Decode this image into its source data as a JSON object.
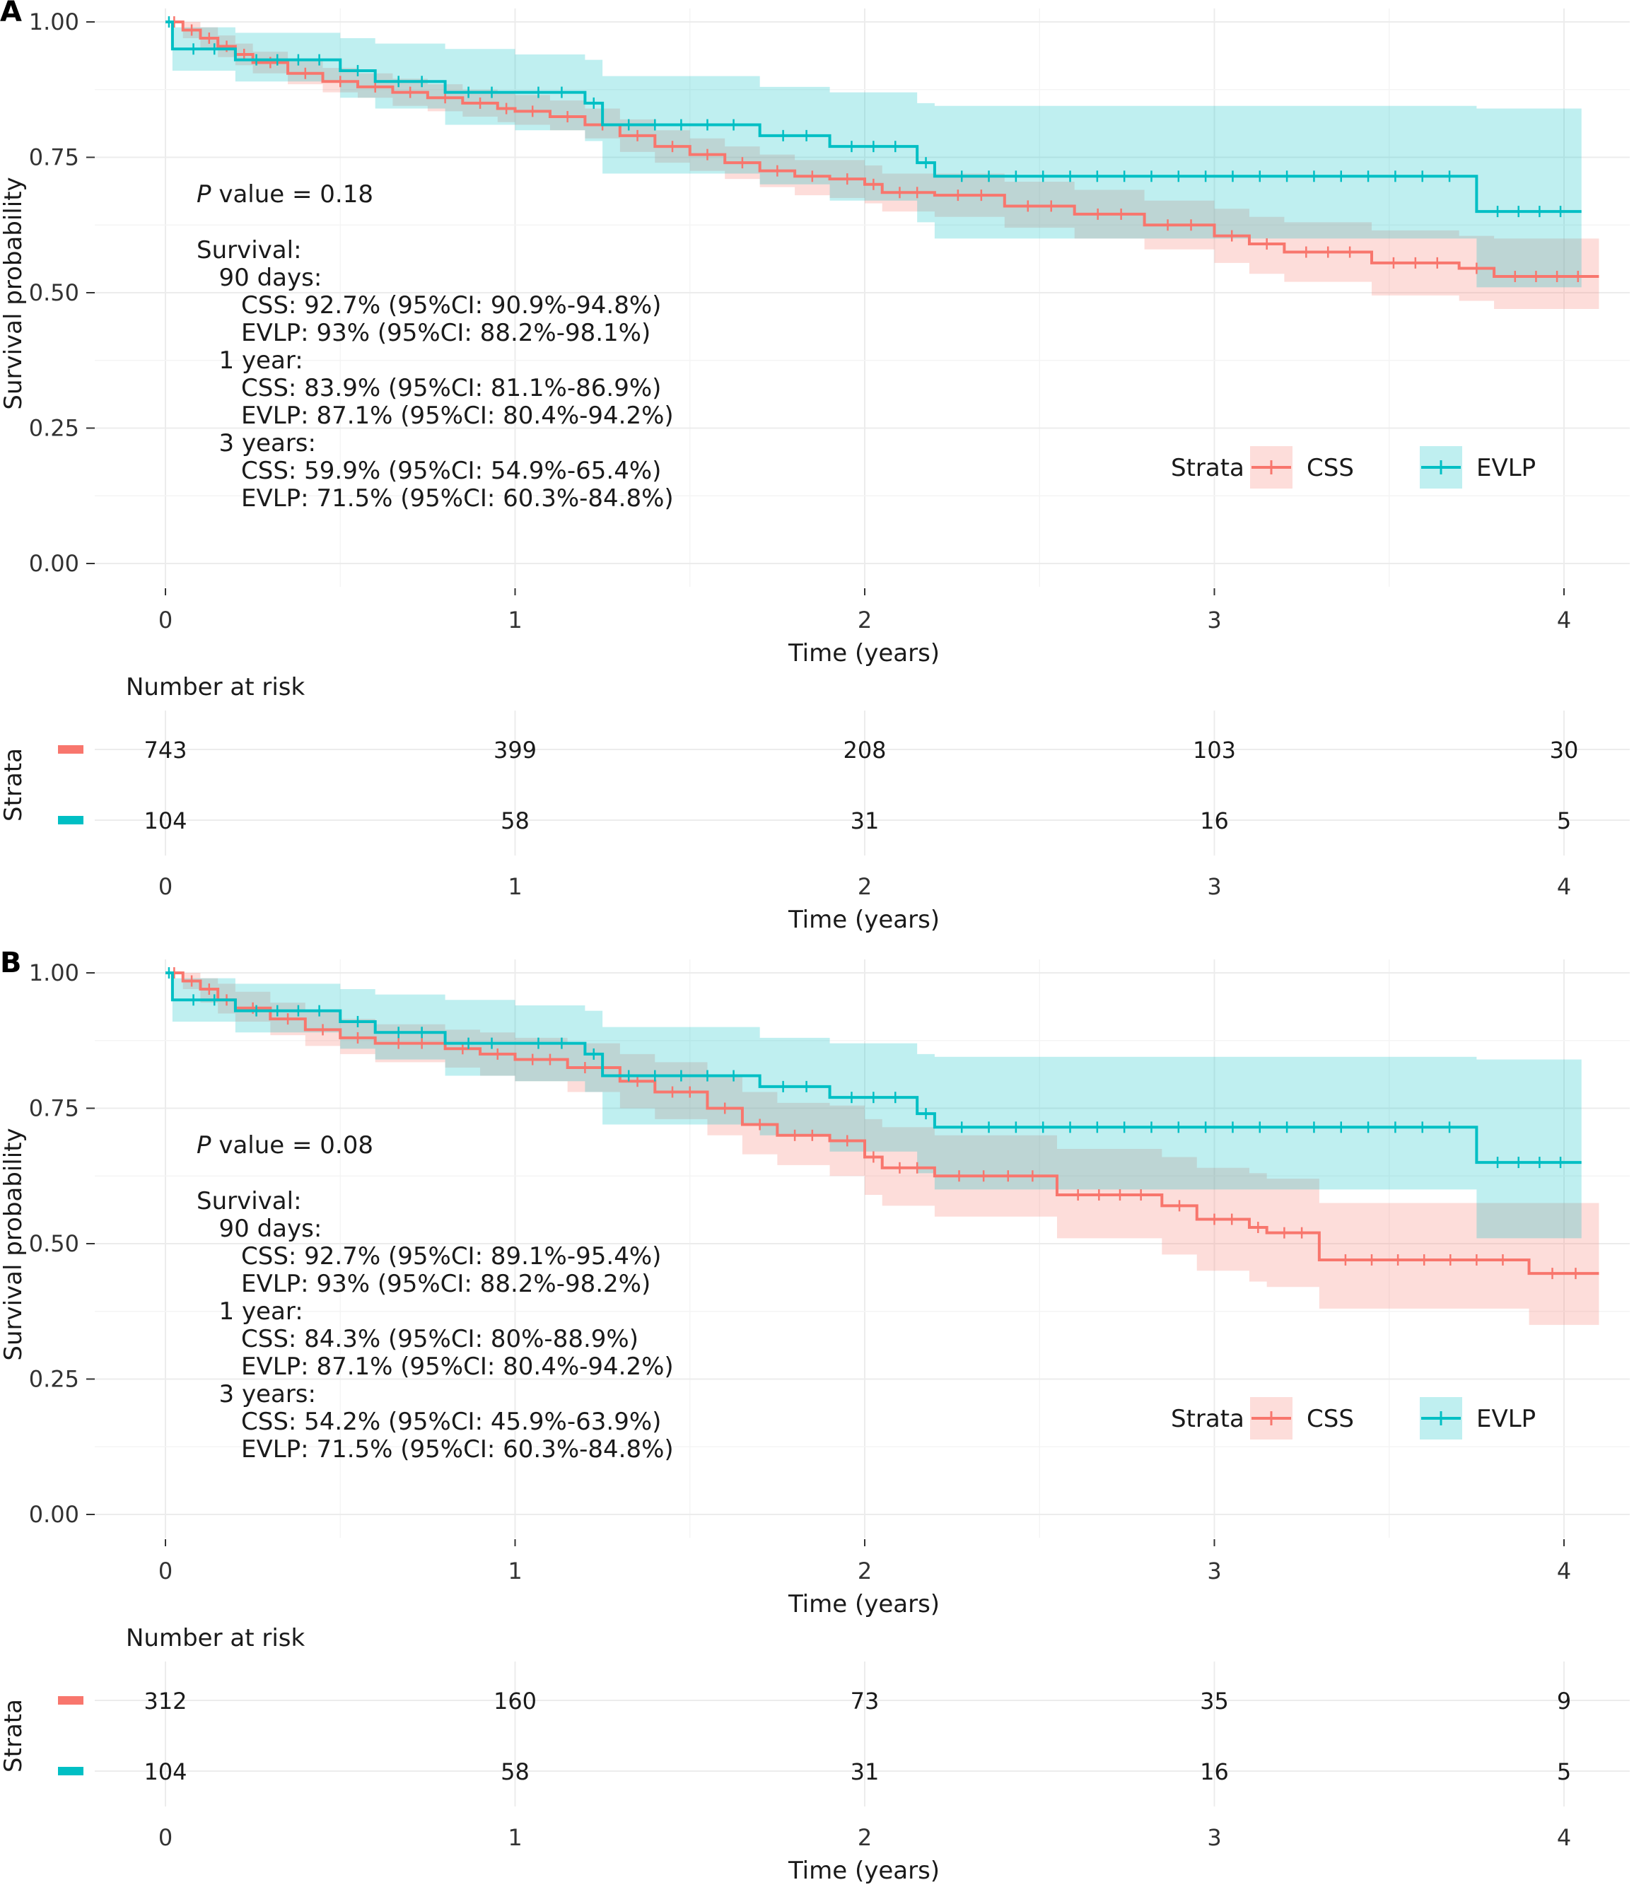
{
  "colors": {
    "css": "#f8766d",
    "evlp": "#00bfc4",
    "grid": "#ececec"
  },
  "chart_data": [
    {
      "type": "line",
      "panel_label": "A",
      "xlabel": "Time (years)",
      "ylabel": "Survival probability",
      "xlim": [
        0,
        4.15
      ],
      "ylim": [
        0,
        1
      ],
      "x_ticks": [
        "0",
        "1",
        "2",
        "3",
        "4"
      ],
      "y_ticks": [
        "0.00",
        "0.25",
        "0.50",
        "0.75",
        "1.00"
      ],
      "grid": true,
      "legend": {
        "title": "Strata",
        "position": "bottom-right",
        "items": [
          "CSS",
          "EVLP"
        ]
      },
      "annotation": {
        "p_label": "P",
        "p_value": " value = 0.18",
        "lines": [
          "Survival:",
          "   90 days:",
          "      CSS: 92.7% (95%CI: 90.9%-94.8%)",
          "      EVLP: 93% (95%CI: 88.2%-98.1%)",
          "   1 year:",
          "      CSS: 83.9% (95%CI: 81.1%-86.9%)",
          "      EVLP: 87.1% (95%CI: 80.4%-94.2%)",
          "   3 years:",
          "      CSS: 59.9% (95%CI: 54.9%-65.4%)",
          "      EVLP: 71.5% (95%CI: 60.3%-84.8%)"
        ]
      },
      "series": [
        {
          "name": "CSS",
          "x": [
            0,
            0.05,
            0.1,
            0.15,
            0.2,
            0.25,
            0.35,
            0.45,
            0.55,
            0.65,
            0.75,
            0.85,
            0.95,
            1.0,
            1.1,
            1.2,
            1.3,
            1.4,
            1.5,
            1.6,
            1.7,
            1.8,
            1.9,
            2.0,
            2.05,
            2.2,
            2.4,
            2.6,
            2.8,
            3.0,
            3.1,
            3.2,
            3.45,
            3.7,
            3.8,
            4.1
          ],
          "y": [
            1.0,
            0.985,
            0.97,
            0.955,
            0.94,
            0.925,
            0.905,
            0.89,
            0.88,
            0.87,
            0.86,
            0.85,
            0.84,
            0.835,
            0.825,
            0.81,
            0.79,
            0.77,
            0.755,
            0.74,
            0.725,
            0.715,
            0.71,
            0.7,
            0.685,
            0.68,
            0.66,
            0.645,
            0.625,
            0.605,
            0.59,
            0.575,
            0.555,
            0.545,
            0.53,
            0.53
          ],
          "lower": [
            1.0,
            0.97,
            0.95,
            0.935,
            0.92,
            0.905,
            0.885,
            0.87,
            0.86,
            0.845,
            0.835,
            0.825,
            0.815,
            0.81,
            0.8,
            0.785,
            0.76,
            0.74,
            0.725,
            0.71,
            0.695,
            0.68,
            0.675,
            0.665,
            0.65,
            0.64,
            0.62,
            0.6,
            0.58,
            0.555,
            0.535,
            0.52,
            0.495,
            0.485,
            0.47,
            0.47
          ],
          "upper": [
            1.0,
            1.0,
            0.99,
            0.975,
            0.96,
            0.945,
            0.93,
            0.915,
            0.905,
            0.895,
            0.885,
            0.875,
            0.87,
            0.865,
            0.855,
            0.84,
            0.82,
            0.8,
            0.785,
            0.77,
            0.755,
            0.745,
            0.745,
            0.735,
            0.72,
            0.72,
            0.705,
            0.69,
            0.67,
            0.655,
            0.64,
            0.63,
            0.615,
            0.605,
            0.6,
            0.6
          ]
        },
        {
          "name": "EVLP",
          "x": [
            0,
            0.02,
            0.2,
            0.5,
            0.6,
            0.8,
            1.0,
            1.2,
            1.25,
            1.7,
            1.9,
            2.15,
            2.2,
            3.75,
            4.05
          ],
          "y": [
            1.0,
            0.95,
            0.93,
            0.91,
            0.89,
            0.87,
            0.87,
            0.85,
            0.81,
            0.79,
            0.77,
            0.74,
            0.715,
            0.65,
            0.65
          ],
          "lower": [
            1.0,
            0.91,
            0.89,
            0.86,
            0.84,
            0.81,
            0.8,
            0.78,
            0.72,
            0.7,
            0.67,
            0.63,
            0.6,
            0.51,
            0.51
          ],
          "upper": [
            1.0,
            0.99,
            0.98,
            0.97,
            0.96,
            0.95,
            0.94,
            0.93,
            0.9,
            0.88,
            0.87,
            0.85,
            0.845,
            0.84,
            0.84
          ]
        }
      ],
      "risk_table": {
        "title": "Number at risk",
        "ylabel": "Strata",
        "xlabel": "Time (years)",
        "x_ticks": [
          "0",
          "1",
          "2",
          "3",
          "4"
        ],
        "rows": [
          {
            "name": "CSS",
            "values": [
              "743",
              "399",
              "208",
              "103",
              "30"
            ]
          },
          {
            "name": "EVLP",
            "values": [
              "104",
              "58",
              "31",
              "16",
              "5"
            ]
          }
        ]
      }
    },
    {
      "type": "line",
      "panel_label": "B",
      "xlabel": "Time (years)",
      "ylabel": "Survival probability",
      "xlim": [
        0,
        4.15
      ],
      "ylim": [
        0,
        1
      ],
      "x_ticks": [
        "0",
        "1",
        "2",
        "3",
        "4"
      ],
      "y_ticks": [
        "0.00",
        "0.25",
        "0.50",
        "0.75",
        "1.00"
      ],
      "grid": true,
      "legend": {
        "title": "Strata",
        "position": "bottom-right",
        "items": [
          "CSS",
          "EVLP"
        ]
      },
      "annotation": {
        "p_label": "P",
        "p_value": " value = 0.08",
        "lines": [
          "Survival:",
          "   90 days:",
          "      CSS: 92.7% (95%CI: 89.1%-95.4%)",
          "      EVLP: 93% (95%CI: 88.2%-98.2%)",
          "   1 year:",
          "      CSS: 84.3% (95%CI: 80%-88.9%)",
          "      EVLP: 87.1% (95%CI: 80.4%-94.2%)",
          "   3 years:",
          "      CSS: 54.2% (95%CI: 45.9%-63.9%)",
          "      EVLP: 71.5% (95%CI: 60.3%-84.8%)"
        ]
      },
      "series": [
        {
          "name": "CSS",
          "x": [
            0,
            0.05,
            0.1,
            0.15,
            0.2,
            0.3,
            0.4,
            0.5,
            0.6,
            0.8,
            0.9,
            1.0,
            1.15,
            1.3,
            1.4,
            1.55,
            1.65,
            1.75,
            1.9,
            2.0,
            2.05,
            2.2,
            2.55,
            2.85,
            2.95,
            3.1,
            3.15,
            3.3,
            3.9,
            4.1
          ],
          "y": [
            1.0,
            0.985,
            0.97,
            0.95,
            0.935,
            0.915,
            0.895,
            0.88,
            0.87,
            0.86,
            0.85,
            0.84,
            0.825,
            0.8,
            0.78,
            0.75,
            0.72,
            0.7,
            0.69,
            0.66,
            0.64,
            0.625,
            0.59,
            0.57,
            0.545,
            0.53,
            0.52,
            0.47,
            0.445,
            0.445
          ],
          "lower": [
            1.0,
            0.97,
            0.945,
            0.925,
            0.91,
            0.885,
            0.865,
            0.85,
            0.835,
            0.825,
            0.81,
            0.8,
            0.78,
            0.75,
            0.73,
            0.7,
            0.665,
            0.645,
            0.625,
            0.59,
            0.57,
            0.55,
            0.51,
            0.48,
            0.45,
            0.43,
            0.42,
            0.38,
            0.35,
            0.35
          ],
          "upper": [
            1.0,
            1.0,
            0.99,
            0.98,
            0.965,
            0.945,
            0.93,
            0.915,
            0.905,
            0.895,
            0.89,
            0.88,
            0.87,
            0.85,
            0.835,
            0.81,
            0.78,
            0.76,
            0.755,
            0.73,
            0.715,
            0.7,
            0.675,
            0.66,
            0.64,
            0.63,
            0.62,
            0.575,
            0.575,
            0.575
          ]
        },
        {
          "name": "EVLP",
          "x": [
            0,
            0.02,
            0.2,
            0.5,
            0.6,
            0.8,
            1.0,
            1.2,
            1.25,
            1.7,
            1.9,
            2.15,
            2.2,
            3.75,
            4.05
          ],
          "y": [
            1.0,
            0.95,
            0.93,
            0.91,
            0.89,
            0.87,
            0.87,
            0.85,
            0.81,
            0.79,
            0.77,
            0.74,
            0.715,
            0.65,
            0.65
          ],
          "lower": [
            1.0,
            0.91,
            0.89,
            0.86,
            0.84,
            0.81,
            0.8,
            0.78,
            0.72,
            0.7,
            0.67,
            0.63,
            0.6,
            0.51,
            0.51
          ],
          "upper": [
            1.0,
            0.99,
            0.98,
            0.97,
            0.96,
            0.95,
            0.94,
            0.93,
            0.9,
            0.88,
            0.87,
            0.85,
            0.845,
            0.84,
            0.84
          ]
        }
      ],
      "risk_table": {
        "title": "Number at risk",
        "ylabel": "Strata",
        "xlabel": "Time (years)",
        "x_ticks": [
          "0",
          "1",
          "2",
          "3",
          "4"
        ],
        "rows": [
          {
            "name": "CSS",
            "values": [
              "312",
              "160",
              "73",
              "35",
              "9"
            ]
          },
          {
            "name": "EVLP",
            "values": [
              "104",
              "58",
              "31",
              "16",
              "5"
            ]
          }
        ]
      }
    }
  ]
}
